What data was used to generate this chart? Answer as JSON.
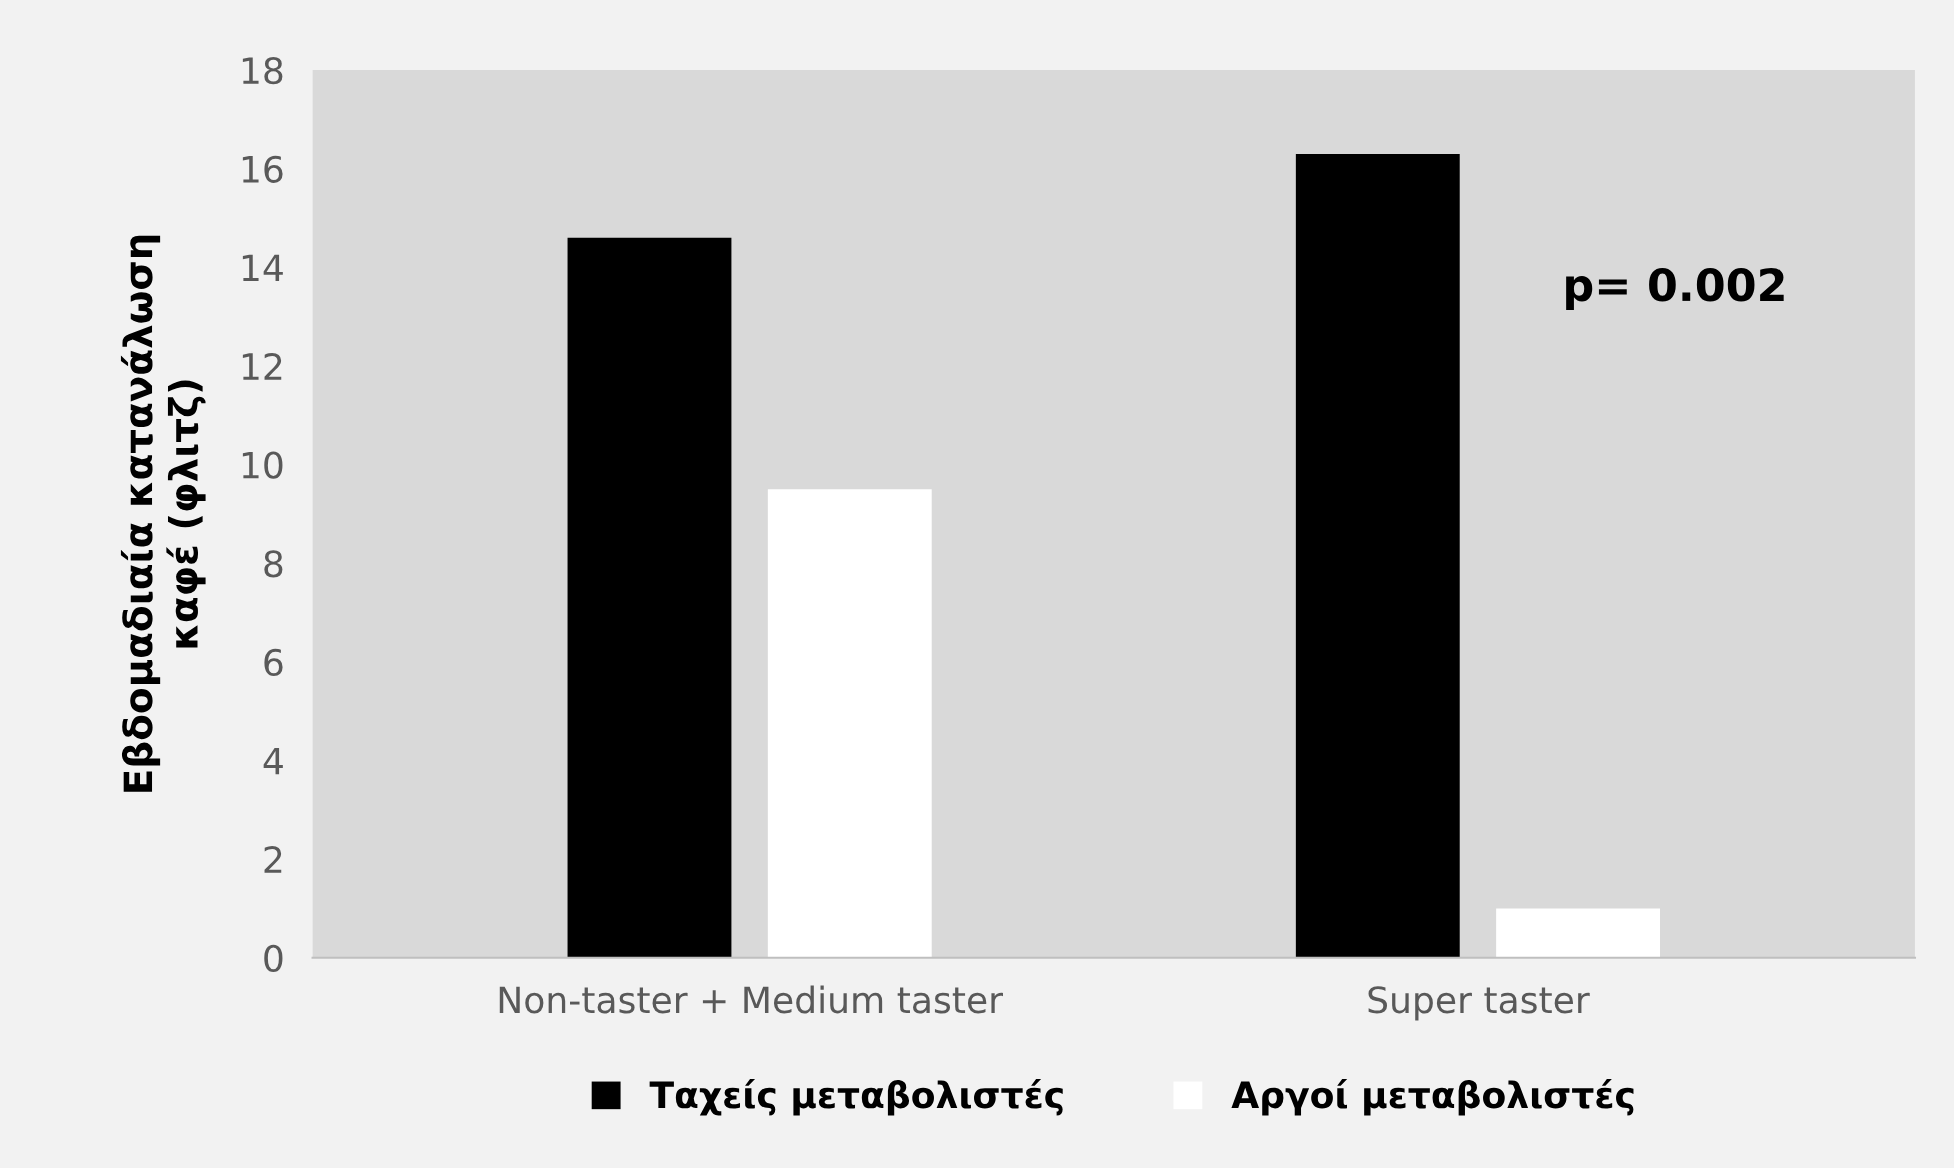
{
  "chart_data": {
    "type": "bar",
    "ylabel": "Εβδομαδιαία κατανάλωση\nκαφέ (φλιτζ)",
    "categories": [
      "Non-taster + Medium taster",
      "Super taster"
    ],
    "series": [
      {
        "name": "Ταχείς μεταβολιστές",
        "color": "#000000",
        "values": [
          14.6,
          16.3
        ]
      },
      {
        "name": "Αργοί μεταβολιστές",
        "color": "#ffffff",
        "values": [
          9.5,
          1.0
        ]
      }
    ],
    "ylim": [
      0,
      18
    ],
    "yticks": [
      0,
      2,
      4,
      6,
      8,
      10,
      12,
      14,
      16,
      18
    ],
    "grid": false,
    "legend": "bottom",
    "annotations": [
      "p= 0.002"
    ]
  }
}
